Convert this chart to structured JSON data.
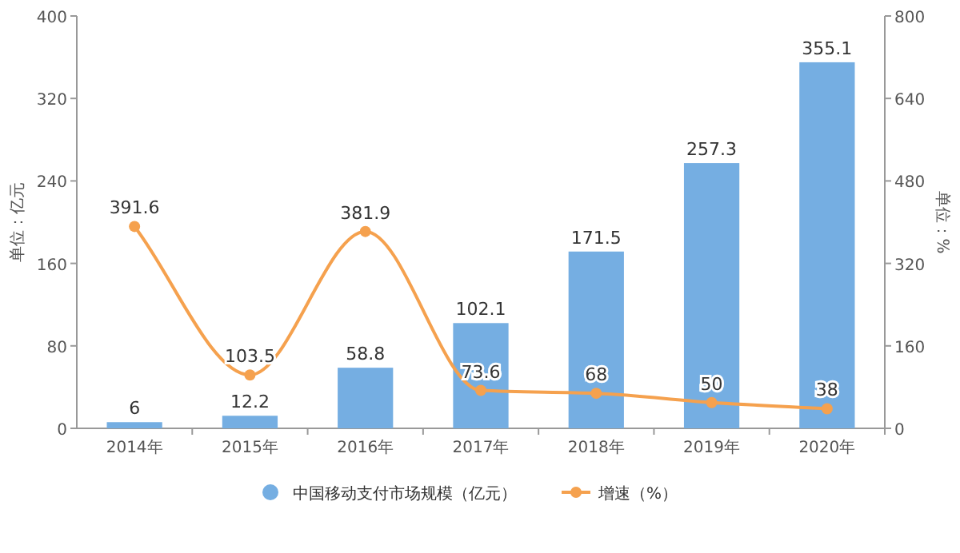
{
  "chart_data": {
    "type": "bar",
    "categories": [
      "2014年",
      "2015年",
      "2016年",
      "2017年",
      "2018年",
      "2019年",
      "2020年"
    ],
    "ylabel": "单位：亿元",
    "y2label": "单位：%",
    "ylim": [
      0,
      400
    ],
    "yticks": [
      0,
      80,
      160,
      240,
      320,
      400
    ],
    "y2lim": [
      0,
      800
    ],
    "y2ticks": [
      0,
      160,
      320,
      480,
      640,
      800
    ],
    "series": [
      {
        "name": "中国移动支付市场规模（亿元）",
        "color": "#75aee2",
        "values": [
          6,
          12.2,
          58.8,
          102.1,
          171.5,
          257.3,
          355.1
        ]
      },
      {
        "name": "增速（%）",
        "type": "line",
        "axis": "y2",
        "color": "#f5a14e",
        "marker": "circle",
        "values": [
          391.6,
          103.5,
          381.9,
          73.6,
          68,
          50,
          38
        ]
      }
    ],
    "data_labels": true,
    "legend": "bottom"
  }
}
